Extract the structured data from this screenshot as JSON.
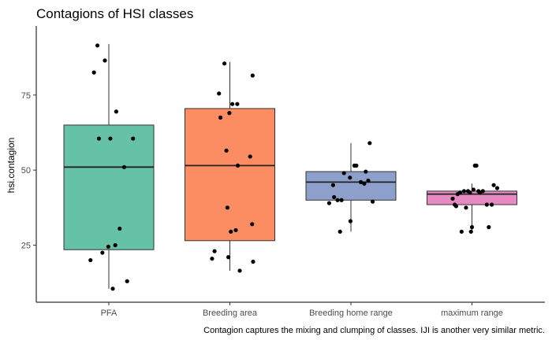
{
  "chart_data": {
    "type": "boxplot",
    "title": "Contagions of HSI classes",
    "caption": "Contagion captures the mixing and clumping of classes. IJI is another very similar metric.",
    "xlabel": "",
    "ylabel": "hsi.contagion",
    "ylim": [
      6,
      98
    ],
    "yticks": [
      25,
      50,
      75
    ],
    "grid": false,
    "legend": "none",
    "categories": [
      "PFA",
      "Breeding area",
      "Breeding home range",
      "maximum range"
    ],
    "colors": [
      "#66c2a5",
      "#fc8d62",
      "#8da0cb",
      "#e78ac3"
    ],
    "boxes": [
      {
        "category": "PFA",
        "whisker_low": 10.5,
        "q1": 23.5,
        "median": 51.0,
        "q3": 65.0,
        "whisker_high": 92.0
      },
      {
        "category": "Breeding area",
        "whisker_low": 16.5,
        "q1": 26.5,
        "median": 51.5,
        "q3": 70.5,
        "whisker_high": 86.0
      },
      {
        "category": "Breeding home range",
        "whisker_low": 29.5,
        "q1": 40.0,
        "median": 46.0,
        "q3": 49.5,
        "whisker_high": 59.0
      },
      {
        "category": "maximum range",
        "whisker_low": 29.5,
        "q1": 38.5,
        "median": 42.0,
        "q3": 43.0,
        "whisker_high": 45.5
      }
    ],
    "points": [
      [
        [
          -0.37,
          20.0
        ],
        [
          -0.3,
          82.5
        ],
        [
          -0.23,
          91.5
        ],
        [
          -0.2,
          60.5
        ],
        [
          -0.13,
          22.5
        ],
        [
          -0.08,
          86.5
        ],
        [
          -0.01,
          24.5
        ],
        [
          0.03,
          60.5
        ],
        [
          0.08,
          10.5
        ],
        [
          0.13,
          25.0
        ],
        [
          0.15,
          69.5
        ],
        [
          0.22,
          30.5
        ],
        [
          0.31,
          51.0
        ],
        [
          0.37,
          13.0
        ],
        [
          0.49,
          60.5
        ]
      ],
      [
        [
          -0.36,
          20.5
        ],
        [
          -0.31,
          23.0
        ],
        [
          -0.22,
          75.5
        ],
        [
          -0.19,
          67.5
        ],
        [
          -0.11,
          85.5
        ],
        [
          -0.07,
          56.5
        ],
        [
          -0.05,
          37.5
        ],
        [
          -0.03,
          21.0
        ],
        [
          -0.01,
          69.0
        ],
        [
          0.02,
          29.5
        ],
        [
          0.05,
          72.0
        ],
        [
          0.12,
          30.0
        ],
        [
          0.15,
          72.0
        ],
        [
          0.2,
          16.5
        ],
        [
          0.16,
          51.5
        ],
        [
          0.41,
          54.5
        ],
        [
          0.45,
          32.0
        ],
        [
          0.46,
          81.5
        ],
        [
          0.47,
          19.5
        ]
      ],
      [
        [
          -0.44,
          39.0
        ],
        [
          -0.36,
          45.0
        ],
        [
          -0.34,
          41.0
        ],
        [
          -0.27,
          40.0
        ],
        [
          -0.22,
          29.5
        ],
        [
          -0.19,
          40.0
        ],
        [
          -0.14,
          49.0
        ],
        [
          -0.02,
          47.5
        ],
        [
          -0.01,
          33.0
        ],
        [
          0.07,
          51.5
        ],
        [
          0.11,
          51.5
        ],
        [
          0.2,
          46.0
        ],
        [
          0.27,
          45.5
        ],
        [
          0.3,
          49.5
        ],
        [
          0.35,
          46.5
        ],
        [
          0.38,
          59.0
        ],
        [
          0.44,
          39.5
        ]
      ],
      [
        [
          -0.39,
          40.5
        ],
        [
          -0.35,
          38.5
        ],
        [
          -0.32,
          38.0
        ],
        [
          -0.29,
          42.0
        ],
        [
          -0.24,
          42.5
        ],
        [
          -0.21,
          29.5
        ],
        [
          -0.16,
          43.0
        ],
        [
          -0.12,
          37.5
        ],
        [
          -0.08,
          43.0
        ],
        [
          -0.04,
          42.5
        ],
        [
          -0.02,
          29.5
        ],
        [
          0.0,
          31.0
        ],
        [
          0.03,
          43.5
        ],
        [
          0.06,
          51.5
        ],
        [
          0.09,
          51.5
        ],
        [
          0.13,
          43.0
        ],
        [
          0.16,
          42.5
        ],
        [
          0.22,
          43.0
        ],
        [
          0.3,
          38.5
        ],
        [
          0.34,
          31.0
        ],
        [
          0.4,
          38.5
        ],
        [
          0.44,
          45.0
        ],
        [
          0.51,
          44.0
        ]
      ]
    ]
  }
}
